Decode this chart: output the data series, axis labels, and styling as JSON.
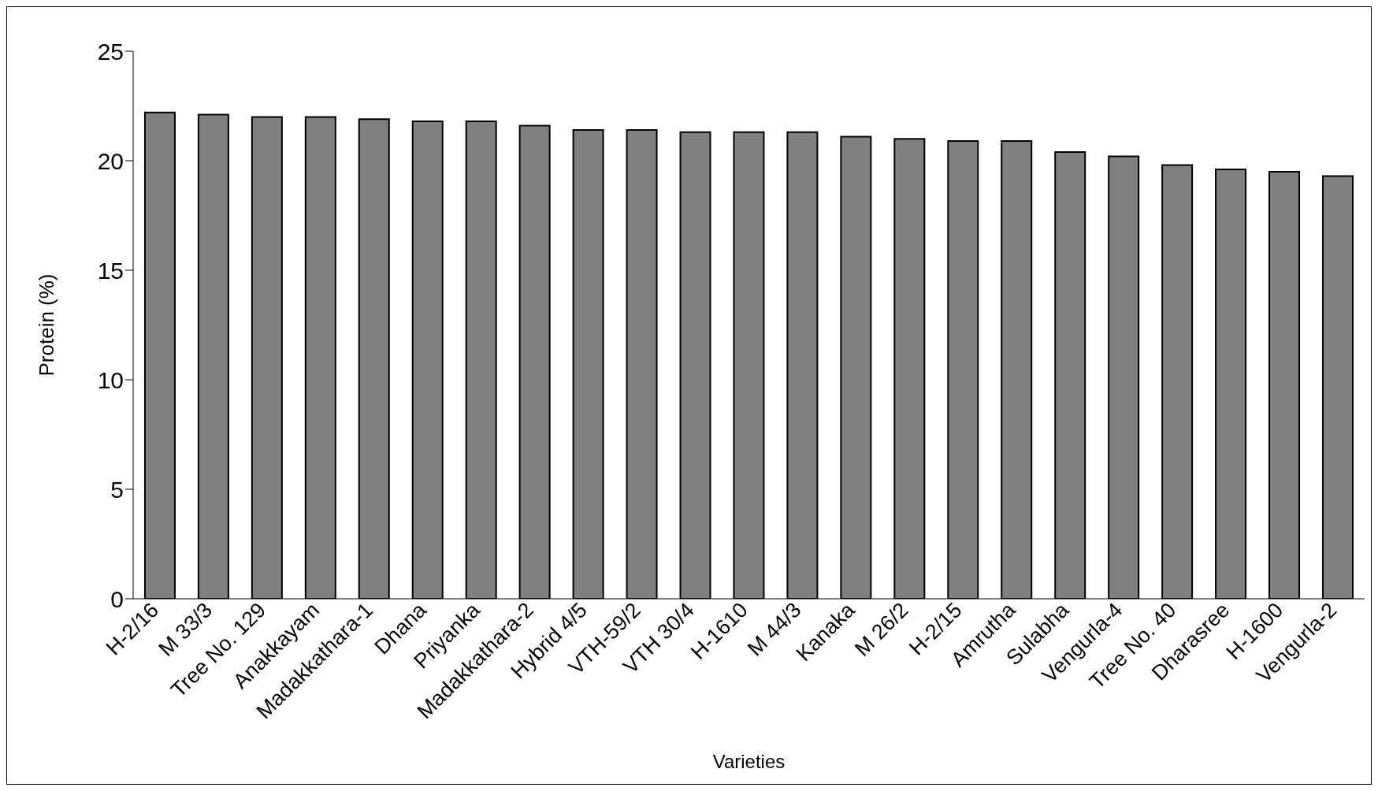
{
  "chart_data": {
    "type": "bar",
    "xlabel": "Varieties",
    "ylabel": "Protein (%)",
    "categories": [
      "H-2/16",
      "M 33/3",
      "Tree No. 129",
      "Anakkayam",
      "Madakkathara-1",
      "Dhana",
      "Priyanka",
      "Madakkathara-2",
      "Hybrid 4/5",
      "VTH-59/2",
      "VTH 30/4",
      "H-1610",
      "M 44/3",
      "Kanaka",
      "M 26/2",
      "H-2/15",
      "Amrutha",
      "Sulabha",
      "Vengurla-4",
      "Tree No. 40",
      "Dharasree",
      "H-1600",
      "Vengurla-2"
    ],
    "values": [
      22.2,
      22.1,
      22.0,
      22.0,
      21.9,
      21.8,
      21.8,
      21.6,
      21.4,
      21.4,
      21.3,
      21.3,
      21.3,
      21.1,
      21.0,
      20.9,
      20.9,
      20.4,
      20.2,
      19.8,
      19.6,
      19.5,
      19.3
    ],
    "color": "#808080",
    "ylim": [
      0,
      25
    ],
    "yticks": [
      0,
      5,
      10,
      15,
      20,
      25
    ],
    "grid": false,
    "legend": false
  }
}
